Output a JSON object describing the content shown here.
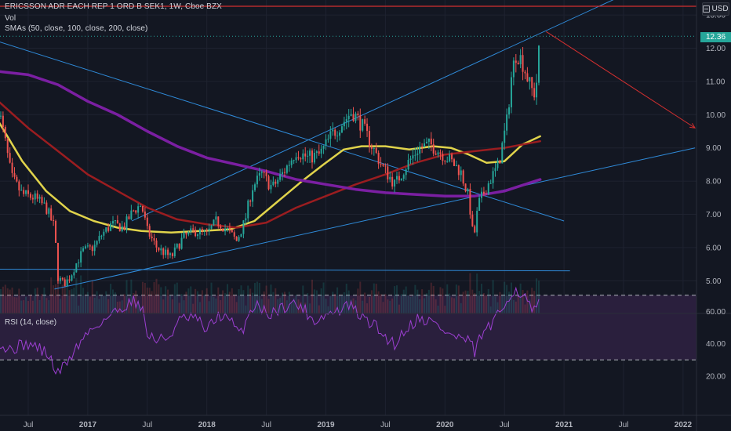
{
  "legend": {
    "title": "ERICSSON ADR EACH REP 1 ORD B SEK1, 1W, Cboe BZX",
    "vol": "Vol",
    "sma": "SMAs (50, close, 100, close, 200, close)",
    "rsi": "RSI (14, close)"
  },
  "currency_label": "USD",
  "last_price_label": "12.36",
  "colors": {
    "background": "#131722",
    "up": "#26a69a",
    "down": "#ef5350",
    "sma50": "#e0d34b",
    "sma100": "#9b1d20",
    "sma200": "#7b1fa2",
    "trendline": "#2f8ad8",
    "rsi": "#9c3fd1",
    "rsi_band": "#2a1f3d",
    "arrow": "#d32f2f"
  },
  "chart_data": [
    {
      "type": "candlestick",
      "title": "ERICSSON ADR EACH REP 1 ORD B SEK1, 1W, Cboe BZX",
      "ylim": [
        4.3,
        13.3
      ],
      "y_ticks": [
        5.0,
        6.0,
        7.0,
        8.0,
        9.0,
        10.0,
        11.0,
        12.0,
        13.0
      ],
      "x_ticks": [
        "Jul",
        "2017",
        "Jul",
        "2018",
        "Jul",
        "2019",
        "Jul",
        "2020",
        "Jul",
        "2021",
        "Jul",
        "2022"
      ],
      "x_range": [
        2016.25,
        2022.1
      ],
      "last_price": 12.36,
      "price_path": [
        [
          2016.25,
          10.2
        ],
        [
          2016.3,
          9.3
        ],
        [
          2016.36,
          8.1
        ],
        [
          2016.45,
          7.6
        ],
        [
          2016.55,
          7.5
        ],
        [
          2016.65,
          7.2
        ],
        [
          2016.72,
          6.6
        ],
        [
          2016.75,
          5.1
        ],
        [
          2016.8,
          4.9
        ],
        [
          2016.85,
          5.1
        ],
        [
          2016.9,
          5.5
        ],
        [
          2016.96,
          5.9
        ],
        [
          2017.05,
          6.0
        ],
        [
          2017.12,
          6.4
        ],
        [
          2017.2,
          6.7
        ],
        [
          2017.3,
          6.6
        ],
        [
          2017.38,
          7.1
        ],
        [
          2017.45,
          7.3
        ],
        [
          2017.5,
          6.5
        ],
        [
          2017.58,
          6.0
        ],
        [
          2017.7,
          5.7
        ],
        [
          2017.8,
          6.3
        ],
        [
          2017.9,
          6.5
        ],
        [
          2018.0,
          6.4
        ],
        [
          2018.08,
          6.8
        ],
        [
          2018.18,
          6.5
        ],
        [
          2018.25,
          6.2
        ],
        [
          2018.32,
          6.8
        ],
        [
          2018.38,
          7.8
        ],
        [
          2018.46,
          8.2
        ],
        [
          2018.55,
          7.8
        ],
        [
          2018.65,
          8.3
        ],
        [
          2018.75,
          8.9
        ],
        [
          2018.85,
          8.7
        ],
        [
          2018.95,
          8.8
        ],
        [
          2019.05,
          9.4
        ],
        [
          2019.15,
          9.8
        ],
        [
          2019.22,
          10.1
        ],
        [
          2019.3,
          9.7
        ],
        [
          2019.38,
          9.1
        ],
        [
          2019.48,
          8.4
        ],
        [
          2019.58,
          7.9
        ],
        [
          2019.68,
          8.5
        ],
        [
          2019.78,
          9.0
        ],
        [
          2019.88,
          9.1
        ],
        [
          2019.95,
          8.9
        ],
        [
          2020.05,
          8.6
        ],
        [
          2020.13,
          8.3
        ],
        [
          2020.2,
          7.5
        ],
        [
          2020.24,
          6.2
        ],
        [
          2020.28,
          7.3
        ],
        [
          2020.36,
          7.9
        ],
        [
          2020.45,
          8.5
        ],
        [
          2020.52,
          9.8
        ],
        [
          2020.56,
          11.2
        ],
        [
          2020.6,
          11.9
        ],
        [
          2020.65,
          11.6
        ],
        [
          2020.72,
          10.8
        ],
        [
          2020.76,
          10.6
        ],
        [
          2020.8,
          12.36
        ]
      ],
      "series": [
        {
          "name": "SMA 50",
          "points": [
            [
              2016.25,
              9.8
            ],
            [
              2016.45,
              8.6
            ],
            [
              2016.65,
              7.7
            ],
            [
              2016.85,
              7.1
            ],
            [
              2017.05,
              6.8
            ],
            [
              2017.25,
              6.6
            ],
            [
              2017.45,
              6.5
            ],
            [
              2017.7,
              6.45
            ],
            [
              2017.95,
              6.5
            ],
            [
              2018.2,
              6.55
            ],
            [
              2018.4,
              6.8
            ],
            [
              2018.6,
              7.4
            ],
            [
              2018.8,
              8.0
            ],
            [
              2018.98,
              8.5
            ],
            [
              2019.15,
              8.95
            ],
            [
              2019.3,
              9.05
            ],
            [
              2019.5,
              9.05
            ],
            [
              2019.7,
              8.95
            ],
            [
              2019.9,
              9.05
            ],
            [
              2020.05,
              9.0
            ],
            [
              2020.2,
              8.8
            ],
            [
              2020.35,
              8.55
            ],
            [
              2020.5,
              8.6
            ],
            [
              2020.65,
              9.1
            ],
            [
              2020.8,
              9.35
            ]
          ]
        },
        {
          "name": "SMA 100",
          "points": [
            [
              2016.25,
              10.4
            ],
            [
              2016.5,
              9.6
            ],
            [
              2016.75,
              8.9
            ],
            [
              2017.0,
              8.2
            ],
            [
              2017.25,
              7.7
            ],
            [
              2017.5,
              7.2
            ],
            [
              2017.75,
              6.85
            ],
            [
              2018.0,
              6.7
            ],
            [
              2018.25,
              6.6
            ],
            [
              2018.5,
              6.75
            ],
            [
              2018.75,
              7.2
            ],
            [
              2019.0,
              7.55
            ],
            [
              2019.25,
              7.9
            ],
            [
              2019.5,
              8.2
            ],
            [
              2019.75,
              8.55
            ],
            [
              2020.0,
              8.8
            ],
            [
              2020.25,
              8.9
            ],
            [
              2020.5,
              9.0
            ],
            [
              2020.8,
              9.2
            ]
          ]
        },
        {
          "name": "SMA 200",
          "points": [
            [
              2016.25,
              11.3
            ],
            [
              2016.5,
              11.2
            ],
            [
              2016.75,
              10.9
            ],
            [
              2017.0,
              10.4
            ],
            [
              2017.25,
              10.0
            ],
            [
              2017.5,
              9.5
            ],
            [
              2017.75,
              9.05
            ],
            [
              2018.0,
              8.7
            ],
            [
              2018.25,
              8.5
            ],
            [
              2018.5,
              8.3
            ],
            [
              2018.75,
              8.05
            ],
            [
              2019.0,
              7.9
            ],
            [
              2019.25,
              7.75
            ],
            [
              2019.5,
              7.65
            ],
            [
              2019.75,
              7.6
            ],
            [
              2020.0,
              7.55
            ],
            [
              2020.25,
              7.55
            ],
            [
              2020.5,
              7.7
            ],
            [
              2020.8,
              8.05
            ]
          ]
        }
      ],
      "trendlines": [
        {
          "from": [
            2016.25,
            12.2
          ],
          "to": [
            2021.0,
            6.8
          ]
        },
        {
          "from": [
            2017.37,
            6.8
          ],
          "to": [
            2021.5,
            13.6
          ]
        },
        {
          "from": [
            2016.72,
            4.75
          ],
          "to": [
            2022.1,
            9.0
          ]
        },
        {
          "from": [
            2016.25,
            5.35
          ],
          "to": [
            2021.05,
            5.3
          ]
        }
      ],
      "arrow": {
        "from": [
          2020.85,
          12.5
        ],
        "to": [
          2022.1,
          9.6
        ]
      }
    },
    {
      "type": "line",
      "title": "RSI (14, close)",
      "ylim": [
        17,
        79
      ],
      "y_ticks": [
        20.0,
        40.0,
        60.0
      ],
      "band": [
        30,
        70
      ],
      "values": [
        [
          2016.25,
          42
        ],
        [
          2016.32,
          36
        ],
        [
          2016.4,
          38
        ],
        [
          2016.5,
          40
        ],
        [
          2016.6,
          37
        ],
        [
          2016.68,
          32
        ],
        [
          2016.74,
          21
        ],
        [
          2016.8,
          26
        ],
        [
          2016.9,
          37
        ],
        [
          2017.0,
          47
        ],
        [
          2017.1,
          53
        ],
        [
          2017.2,
          58
        ],
        [
          2017.3,
          63
        ],
        [
          2017.38,
          67
        ],
        [
          2017.45,
          64
        ],
        [
          2017.5,
          46
        ],
        [
          2017.58,
          42
        ],
        [
          2017.68,
          44
        ],
        [
          2017.78,
          55
        ],
        [
          2017.9,
          56
        ],
        [
          2018.0,
          48
        ],
        [
          2018.1,
          58
        ],
        [
          2018.2,
          54
        ],
        [
          2018.28,
          45
        ],
        [
          2018.35,
          58
        ],
        [
          2018.42,
          66
        ],
        [
          2018.5,
          58
        ],
        [
          2018.6,
          61
        ],
        [
          2018.7,
          65
        ],
        [
          2018.8,
          63
        ],
        [
          2018.9,
          54
        ],
        [
          2019.0,
          58
        ],
        [
          2019.1,
          60
        ],
        [
          2019.2,
          64
        ],
        [
          2019.3,
          56
        ],
        [
          2019.4,
          52
        ],
        [
          2019.5,
          44
        ],
        [
          2019.58,
          40
        ],
        [
          2019.68,
          50
        ],
        [
          2019.78,
          56
        ],
        [
          2019.88,
          54
        ],
        [
          2019.96,
          50
        ],
        [
          2020.05,
          45
        ],
        [
          2020.15,
          43
        ],
        [
          2020.22,
          40
        ],
        [
          2020.25,
          34
        ],
        [
          2020.3,
          45
        ],
        [
          2020.4,
          52
        ],
        [
          2020.48,
          61
        ],
        [
          2020.55,
          72
        ],
        [
          2020.6,
          73
        ],
        [
          2020.66,
          70
        ],
        [
          2020.72,
          62
        ],
        [
          2020.76,
          59
        ],
        [
          2020.8,
          69
        ]
      ]
    }
  ]
}
